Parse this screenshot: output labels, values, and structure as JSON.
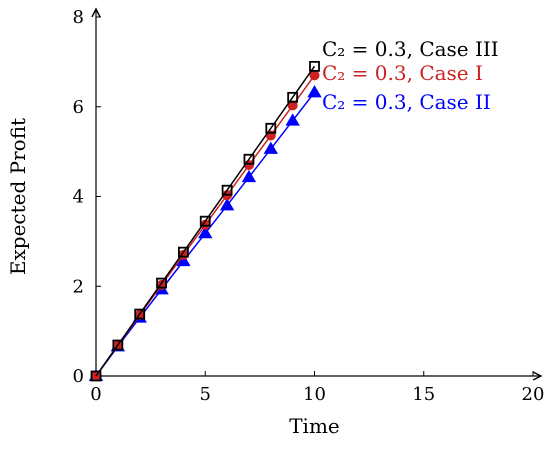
{
  "chart_data": {
    "type": "line",
    "title": "",
    "xlabel": "Time",
    "ylabel": "Expected Profit",
    "xlim": [
      0,
      20
    ],
    "ylim": [
      0,
      8
    ],
    "xticks": [
      0,
      5,
      10,
      15,
      20
    ],
    "yticks": [
      0,
      2,
      4,
      6,
      8
    ],
    "grid": false,
    "x": [
      0,
      1,
      2,
      3,
      4,
      5,
      6,
      7,
      8,
      9,
      10
    ],
    "series": [
      {
        "name": "C₂ = 0.3, Case II",
        "color": "#0000ff",
        "marker": "triangle",
        "values": [
          0,
          0.66,
          1.3,
          1.93,
          2.56,
          3.18,
          3.8,
          4.43,
          5.06,
          5.69,
          6.32
        ]
      },
      {
        "name": "C₂ = 0.3, Case I",
        "color": "#cc2222",
        "marker": "circle",
        "values": [
          0,
          0.68,
          1.36,
          2.03,
          2.7,
          3.37,
          4.03,
          4.7,
          5.36,
          6.03,
          6.7
        ]
      },
      {
        "name": "C₂ = 0.3, Case III",
        "color": "#000000",
        "marker": "square",
        "values": [
          0,
          0.69,
          1.38,
          2.07,
          2.76,
          3.45,
          4.14,
          4.83,
          5.52,
          6.21,
          6.9
        ]
      }
    ]
  }
}
